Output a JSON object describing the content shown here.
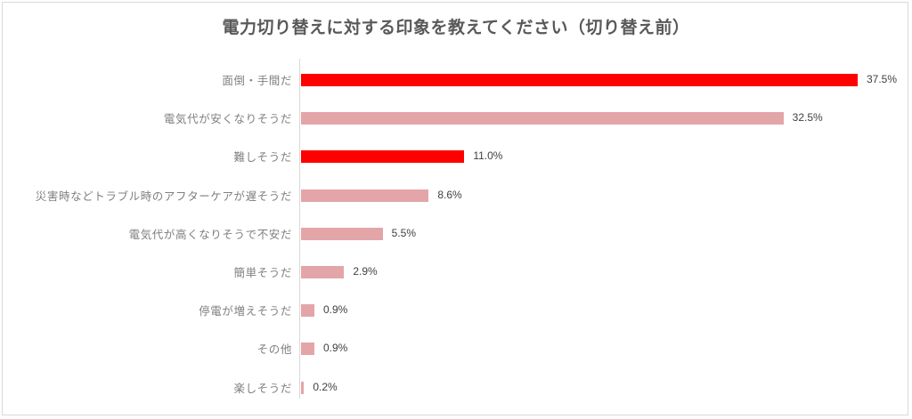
{
  "colors": {
    "highlight": "#ff0000",
    "normal": "#e3a5a8",
    "axis": "#d9d9d9",
    "label": "#7f7f7f",
    "value": "#404040",
    "title": "#595959"
  },
  "chart_data": {
    "type": "bar",
    "orientation": "horizontal",
    "title": "電力切り替えに対する印象を教えてください（切り替え前）",
    "xlabel": "",
    "ylabel": "",
    "xlim": [
      0,
      37.5
    ],
    "grid": false,
    "legend": null,
    "unit": "%",
    "categories": [
      "面倒・手間だ",
      "電気代が安くなりそうだ",
      "難しそうだ",
      "災害時などトラブル時のアフターケアが遅そうだ",
      "電気代が高くなりそうで不安だ",
      "簡単そうだ",
      "停電が増えそうだ",
      "その他",
      "楽しそうだ"
    ],
    "values": [
      37.5,
      32.5,
      11.0,
      8.6,
      5.5,
      2.9,
      0.9,
      0.9,
      0.2
    ],
    "value_labels": [
      "37.5%",
      "32.5%",
      "11.0%",
      "8.6%",
      "5.5%",
      "2.9%",
      "0.9%",
      "0.9%",
      "0.2%"
    ],
    "highlighted": [
      true,
      false,
      true,
      false,
      false,
      false,
      false,
      false,
      false
    ]
  }
}
